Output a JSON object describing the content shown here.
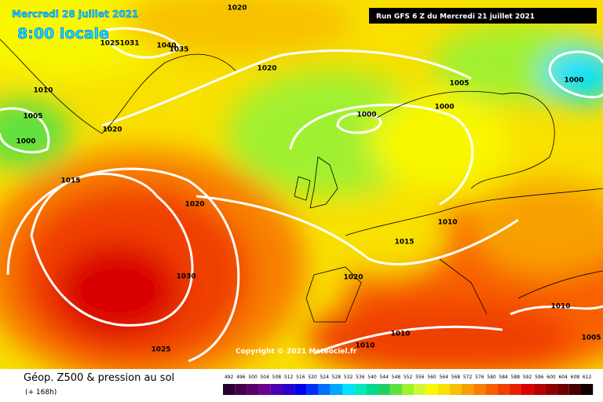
{
  "header": {
    "date": "Mercredi 28 juillet 2021",
    "time": "8:00 locale",
    "run": "Run GFS 6 Z du Mercredi 21 juillet 2021"
  },
  "footer": {
    "title": "Géop. Z500 & pression au sol",
    "subtitle": "(+ 168h)",
    "copyright": "Copyright © 2021 Meteociel.fr"
  },
  "isobar_labels": [
    "1020",
    "1025",
    "1031",
    "1040",
    "1035",
    "1010",
    "1005",
    "1000",
    "1020",
    "1015",
    "1020",
    "1020",
    "1000",
    "1005",
    "1000",
    "1000",
    "1010",
    "1015",
    "1020",
    "1030",
    "1025",
    "1010",
    "1010",
    "1010",
    "1005"
  ],
  "scale": {
    "labels": [
      "492",
      "496",
      "500",
      "504",
      "508",
      "512",
      "516",
      "520",
      "524",
      "528",
      "532",
      "536",
      "540",
      "544",
      "548",
      "552",
      "556",
      "560",
      "564",
      "568",
      "572",
      "576",
      "580",
      "584",
      "588",
      "592",
      "596",
      "600",
      "604",
      "608",
      "612"
    ],
    "colors": [
      "#2a0030",
      "#44004e",
      "#5a006c",
      "#6a0090",
      "#4a00b0",
      "#2800d0",
      "#0000f0",
      "#0030ff",
      "#0070ff",
      "#00a8ff",
      "#00e0ff",
      "#00e8c0",
      "#00d890",
      "#20d060",
      "#60e040",
      "#a0f030",
      "#d0f830",
      "#f8f800",
      "#f8e000",
      "#f8c000",
      "#f8a000",
      "#f88000",
      "#f86000",
      "#f04000",
      "#e82000",
      "#d80000",
      "#b80000",
      "#900000",
      "#700000",
      "#480000",
      "#100000"
    ]
  }
}
